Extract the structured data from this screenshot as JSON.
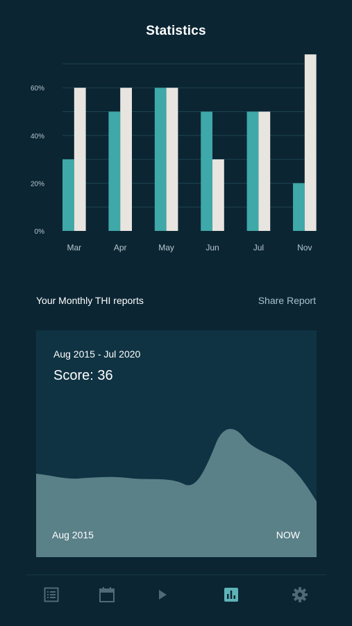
{
  "header": {
    "title": "Statistics"
  },
  "colors": {
    "background": "#0b2533",
    "series_primary": "#3fa8a8",
    "series_secondary": "#e8e4df",
    "card": "#0f3343",
    "wave_fill": "#5a8088",
    "icon_inactive": "#4f6b77",
    "icon_active": "#5fb3b8"
  },
  "chart_data": {
    "type": "bar",
    "categories": [
      "Mar",
      "Apr",
      "May",
      "Jun",
      "Jul",
      "Nov"
    ],
    "series": [
      {
        "values": [
          30,
          50,
          60,
          50,
          50,
          20
        ]
      },
      {
        "values": [
          60,
          60,
          60,
          30,
          50,
          74
        ]
      }
    ],
    "y_ticks": [
      "0%",
      "20%",
      "40%",
      "60%"
    ],
    "ylim": [
      0,
      75
    ],
    "grid": true,
    "legend": "none"
  },
  "reports": {
    "section_title": "Your Monthly THI reports",
    "share_label": "Share Report",
    "card": {
      "date_range": "Aug 2015 - Jul 2020",
      "score_label": "Score:",
      "score_value": "36",
      "start_label": "Aug 2015",
      "end_label": "NOW"
    }
  },
  "tabbar": {
    "active": "stats-icon",
    "items": [
      {
        "icon": "list-icon"
      },
      {
        "icon": "calendar-icon"
      },
      {
        "icon": "play-icon"
      },
      {
        "icon": "stats-icon"
      },
      {
        "icon": "gear-icon"
      }
    ]
  }
}
